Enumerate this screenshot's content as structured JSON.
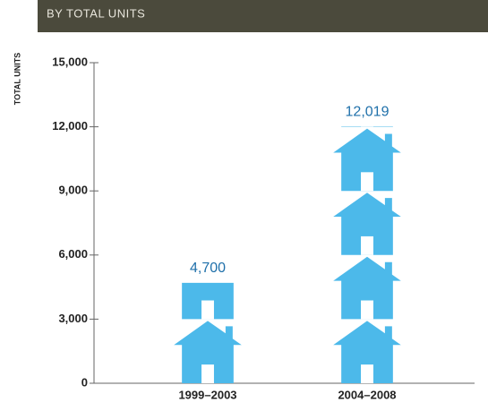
{
  "chart_data": {
    "type": "pictograph",
    "header": "BY TOTAL UNITS",
    "y_label": "TOTAL UNITS",
    "categories": [
      "1999–2003",
      "2004–2008"
    ],
    "values": [
      4700,
      12019
    ],
    "value_labels": [
      "4,700",
      "12,019"
    ],
    "color": "#4cb9ea",
    "ylim": [
      0,
      15000
    ],
    "yticks": [
      0,
      {
        "value": 3000,
        "label": "3,000"
      },
      {
        "value": 6000,
        "label": "6,000"
      },
      {
        "value": 9000,
        "label": "9,000"
      },
      {
        "value": 12000,
        "label": "12,000"
      },
      {
        "value": 15000,
        "label": "15,000"
      }
    ]
  }
}
